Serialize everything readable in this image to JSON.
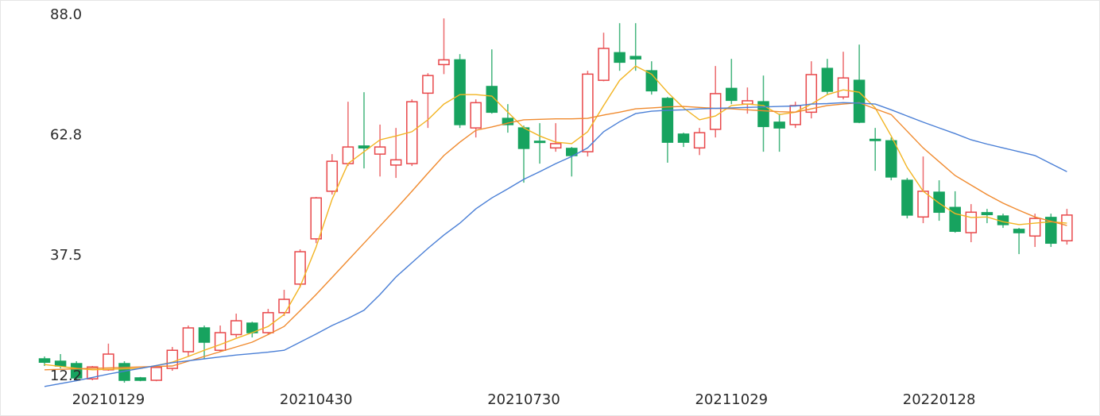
{
  "chart_data": {
    "type": "candlestick",
    "up_color": "#e8474a",
    "down_color": "#17a35f",
    "categories": [
      null,
      null,
      null,
      null,
      "20210129",
      null,
      null,
      null,
      null,
      null,
      null,
      null,
      null,
      null,
      null,
      null,
      null,
      "20210430",
      null,
      null,
      null,
      null,
      null,
      null,
      null,
      null,
      null,
      null,
      null,
      null,
      "20210730",
      null,
      null,
      null,
      null,
      null,
      null,
      null,
      null,
      null,
      null,
      null,
      null,
      "20211029",
      null,
      null,
      null,
      null,
      null,
      null,
      null,
      null,
      null,
      null,
      null,
      null,
      "20220128",
      null,
      null,
      null,
      null,
      null,
      null,
      null,
      null
    ],
    "open": [
      17.5,
      17,
      16.5,
      13.3,
      15.2,
      16.5,
      13.5,
      13,
      15.5,
      19,
      24,
      19.3,
      22.6,
      25,
      23,
      27.2,
      33.2,
      42.7,
      52.7,
      58.5,
      62.2,
      60.5,
      58.2,
      58.5,
      73.3,
      79.3,
      80.3,
      66,
      74.7,
      68,
      66,
      63.2,
      61.8,
      61.7,
      61,
      76,
      81.8,
      81,
      78,
      72.2,
      64.7,
      61.8,
      65.7,
      74.3,
      71,
      71.5,
      67.2,
      66.7,
      69.3,
      78.5,
      72.5,
      76,
      63.6,
      63.3,
      55,
      47.3,
      52.5,
      49.3,
      44,
      48.2,
      47.5,
      44.7,
      43.3,
      47.2,
      42.3
    ],
    "high": [
      18,
      18.5,
      17,
      16,
      20.7,
      17,
      13.7,
      16,
      20,
      24.5,
      24.5,
      24.5,
      27,
      25.3,
      28,
      32,
      40.5,
      51.5,
      60.5,
      71.5,
      73.5,
      66.7,
      66,
      72,
      77.5,
      89,
      81.5,
      72,
      82.5,
      71,
      66.5,
      67,
      67,
      62,
      78,
      86,
      88,
      88,
      80,
      72.5,
      65,
      66,
      79,
      80.5,
      74.5,
      77,
      69,
      71.5,
      80,
      80.5,
      82,
      83.5,
      66,
      64,
      55.5,
      60,
      55,
      52.7,
      50,
      49,
      48,
      45,
      48,
      48,
      49
    ],
    "low": [
      16,
      15.5,
      13,
      13,
      15,
      12.5,
      12.8,
      12.8,
      15,
      18,
      17.5,
      19,
      22,
      22,
      22.5,
      26.5,
      32.5,
      41.8,
      52,
      58,
      57.5,
      55.8,
      55.5,
      58,
      66,
      77.3,
      66,
      64,
      69,
      65,
      54.5,
      58.5,
      61,
      55.8,
      60,
      75.8,
      78,
      78,
      73,
      58.7,
      62,
      60.3,
      64,
      71,
      69,
      61,
      61,
      66,
      68,
      73,
      72,
      67,
      57,
      55,
      47,
      46,
      46.5,
      44,
      42,
      46,
      45,
      39.5,
      41,
      41,
      41.5
    ],
    "close": [
      16.8,
      16,
      13.5,
      15.8,
      18.5,
      13,
      13,
      15.7,
      19.3,
      24,
      21,
      23,
      25.5,
      23,
      27.2,
      30,
      40,
      51.3,
      59,
      62,
      61.8,
      62,
      59.3,
      71.5,
      77,
      80.3,
      66.7,
      71.3,
      69.3,
      66.7,
      61.7,
      63,
      62.7,
      60.2,
      77.3,
      82.7,
      79.8,
      80.5,
      73.8,
      63,
      63,
      65,
      73.2,
      71.8,
      71.7,
      66.3,
      66,
      70.7,
      77.2,
      73.7,
      76.5,
      67.2,
      63.4,
      55.7,
      47.7,
      52.7,
      48.3,
      44.3,
      48.3,
      47.8,
      45.7,
      44,
      47,
      41.8,
      47.7
    ],
    "lines": [
      {
        "color": "#f2b422",
        "values": [
          16.3,
          15.9,
          15.5,
          15.2,
          15.3,
          15.4,
          15.5,
          16.1,
          16.8,
          18,
          19.3,
          20.5,
          21.8,
          23,
          24.3,
          26.8,
          32.7,
          41,
          51,
          58.5,
          61,
          63.5,
          64.3,
          65.2,
          67.7,
          71,
          73,
          73,
          72.7,
          69.3,
          66,
          64.3,
          63,
          62.7,
          65.2,
          70.7,
          76,
          79,
          77.3,
          73.5,
          70.2,
          67.7,
          68.5,
          70.7,
          71,
          70.7,
          68.8,
          69.3,
          71,
          73,
          74,
          73.5,
          70.2,
          64.3,
          57.7,
          52.7,
          50.2,
          48,
          47.2,
          47.3,
          46.3,
          45.7,
          46,
          46.3,
          46
        ]
      },
      {
        "color": "#f08a2e",
        "values": [
          15.2,
          15.3,
          15.4,
          15.5,
          15.6,
          15.7,
          15.8,
          15.9,
          16,
          17,
          18,
          19,
          20,
          21,
          22.6,
          24.3,
          27.6,
          31,
          34.6,
          38.2,
          41.8,
          45.4,
          49,
          52.7,
          56.5,
          60.2,
          63,
          65.5,
          66.2,
          67,
          67.7,
          67.8,
          67.9,
          67.9,
          68,
          68.7,
          69.3,
          70,
          70.2,
          70.4,
          70.5,
          70.3,
          70.1,
          70,
          69.8,
          69.6,
          69.4,
          69.3,
          70,
          70.7,
          71,
          71.3,
          70,
          68.8,
          65.3,
          61.8,
          58.9,
          56,
          54,
          52,
          50.2,
          48.7,
          47.3,
          46.4,
          45.5
        ]
      },
      {
        "color": "#4a7fd6",
        "values": [
          11.7,
          12.3,
          12.9,
          13.6,
          14.3,
          14.9,
          15.5,
          16.1,
          16.7,
          17.1,
          17.5,
          17.9,
          18.3,
          18.6,
          18.9,
          19.3,
          21,
          22.7,
          24.5,
          26,
          27.7,
          31,
          34.7,
          37.7,
          40.7,
          43.5,
          46,
          49,
          51.3,
          53.2,
          55.2,
          56.8,
          58.5,
          60,
          61.8,
          65.2,
          67.3,
          69,
          69.5,
          69.7,
          69.8,
          70,
          70.1,
          70.2,
          70.3,
          70.4,
          70.5,
          70.6,
          71,
          71.1,
          71.3,
          71.2,
          71,
          69.8,
          68.5,
          67.2,
          66,
          64.8,
          63.5,
          62.6,
          61.8,
          61,
          60.2,
          58.5,
          56.8
        ]
      }
    ],
    "ylim": [
      11,
      92.7
    ],
    "yticks": [
      12.2,
      37.5,
      62.8,
      {
        "value": 88.0,
        "label": "88.0"
      }
    ]
  }
}
